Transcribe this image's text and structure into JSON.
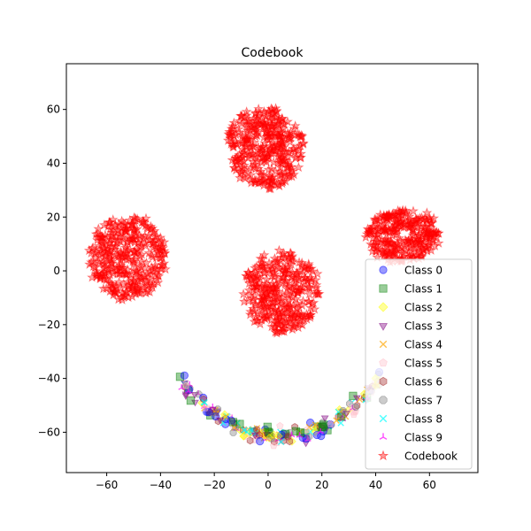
{
  "chart_data": {
    "type": "scatter",
    "title": "Codebook",
    "xlabel": "",
    "ylabel": "",
    "xlim": [
      -75,
      78
    ],
    "ylim": [
      -75,
      77
    ],
    "xticks": [
      -60,
      -40,
      -20,
      0,
      20,
      40,
      60
    ],
    "yticks": [
      -60,
      -40,
      -20,
      0,
      20,
      40,
      60
    ],
    "grid": false,
    "legend_position": "lower-right",
    "codebook_clusters": [
      {
        "center": [
          -1,
          46
        ],
        "spread": [
          14,
          15
        ],
        "count": 360
      },
      {
        "center": [
          -52,
          5
        ],
        "spread": [
          14,
          16
        ],
        "count": 360
      },
      {
        "center": [
          5,
          -8
        ],
        "spread": [
          14,
          15
        ],
        "count": 340
      },
      {
        "center": [
          50,
          13
        ],
        "spread": [
          14,
          10
        ],
        "count": 300
      }
    ],
    "class_arc": {
      "x_range": [
        -33,
        42
      ],
      "bottom_y": -62,
      "top_y": -40,
      "point_count": 220
    },
    "series": [
      {
        "name": "Class 0",
        "marker": "circle",
        "color": "#0000ff"
      },
      {
        "name": "Class 1",
        "marker": "square",
        "color": "#008000"
      },
      {
        "name": "Class 2",
        "marker": "diamond",
        "color": "#ffff00"
      },
      {
        "name": "Class 3",
        "marker": "triangle-down",
        "color": "#800080"
      },
      {
        "name": "Class 4",
        "marker": "x",
        "color": "#ffa500"
      },
      {
        "name": "Class 5",
        "marker": "pentagon",
        "color": "#ffc0cb"
      },
      {
        "name": "Class 6",
        "marker": "hexagon",
        "color": "#a52a2a"
      },
      {
        "name": "Class 7",
        "marker": "octagon",
        "color": "#808080"
      },
      {
        "name": "Class 8",
        "marker": "x",
        "color": "#00ffff"
      },
      {
        "name": "Class 9",
        "marker": "tri-up",
        "color": "#ff00ff"
      },
      {
        "name": "Codebook",
        "marker": "star",
        "color": "#ff0000"
      }
    ]
  }
}
